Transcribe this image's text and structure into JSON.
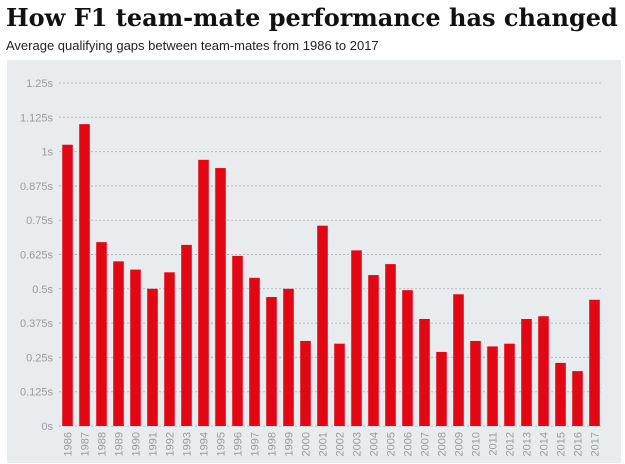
{
  "title": "How F1 team-mate performance has changed",
  "subtitle": "Average qualifying gaps between team-mates from 1986 to 2017",
  "colors": {
    "bar": "#e30613",
    "background": "#e9ecee",
    "grid": "#b5b9bd",
    "text": "#9a9a9a"
  },
  "chart_data": {
    "type": "bar",
    "title": "How F1 team-mate performance has changed",
    "subtitle": "Average qualifying gaps between team-mates from 1986 to 2017",
    "xlabel": "",
    "ylabel": "",
    "ylim": [
      0,
      1.25
    ],
    "grid": true,
    "legend": "none",
    "y_ticks": [
      0,
      0.125,
      0.25,
      0.375,
      0.5,
      0.625,
      0.75,
      0.875,
      1,
      1.125,
      1.25
    ],
    "y_tick_labels": [
      "0s",
      "0.125s",
      "0.25s",
      "0.375s",
      "0.5s",
      "0.625s",
      "0.75s",
      "0.875s",
      "1s",
      "1.125s",
      "1.25s"
    ],
    "categories": [
      "1986",
      "1987",
      "1988",
      "1989",
      "1990",
      "1991",
      "1992",
      "1993",
      "1994",
      "1995",
      "1996",
      "1997",
      "1998",
      "1999",
      "2000",
      "2001",
      "2002",
      "2003",
      "2004",
      "2005",
      "2006",
      "2007",
      "2008",
      "2009",
      "2010",
      "2011",
      "2012",
      "2013",
      "2014",
      "2015",
      "2016",
      "2017"
    ],
    "values": [
      1.025,
      1.1,
      0.67,
      0.6,
      0.57,
      0.5,
      0.56,
      0.66,
      0.97,
      0.94,
      0.62,
      0.54,
      0.47,
      0.5,
      0.31,
      0.73,
      0.3,
      0.64,
      0.55,
      0.59,
      0.495,
      0.39,
      0.27,
      0.48,
      0.31,
      0.29,
      0.3,
      0.39,
      0.4,
      0.23,
      0.2,
      0.46
    ]
  }
}
